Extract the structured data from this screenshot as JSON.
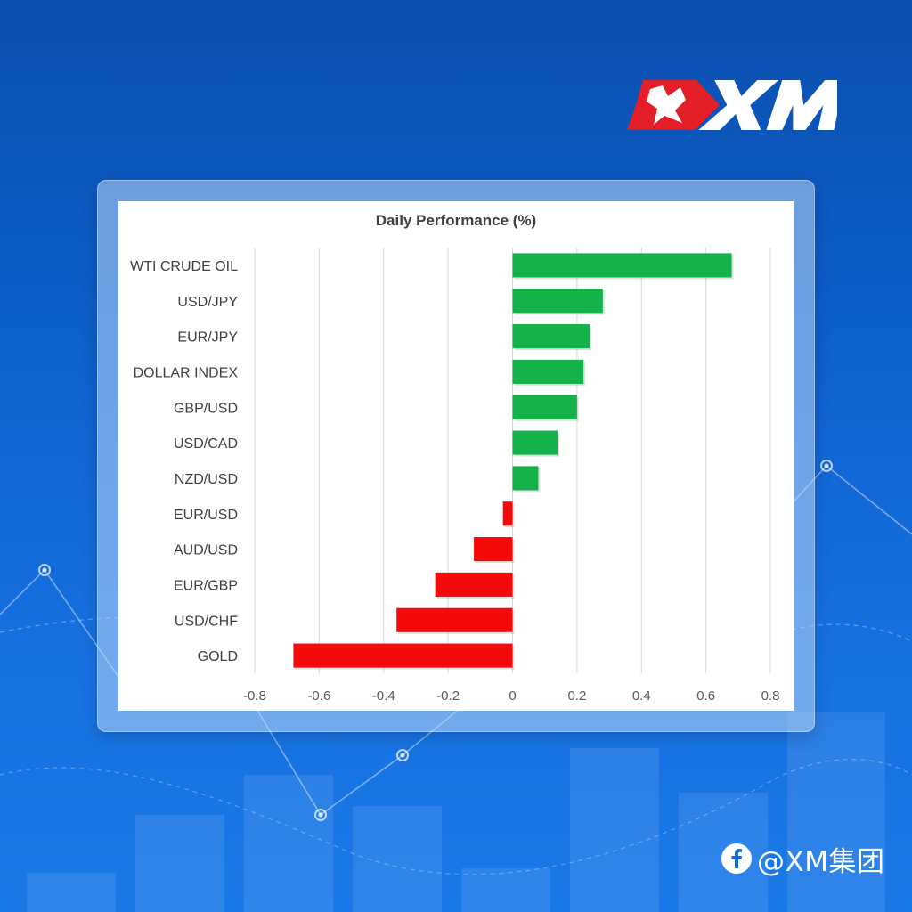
{
  "brand": {
    "name": "XM",
    "colors": {
      "accent_red": "#e41e26",
      "white": "#ffffff"
    }
  },
  "social": {
    "icon": "facebook-icon",
    "handle": "@XM集团"
  },
  "chart_data": {
    "type": "bar",
    "orientation": "horizontal",
    "title": "Daily Performance (%)",
    "xlabel": "",
    "ylabel": "",
    "categories": [
      "WTI CRUDE OIL",
      "USD/JPY",
      "EUR/JPY",
      "DOLLAR INDEX",
      "GBP/USD",
      "USD/CAD",
      "NZD/USD",
      "EUR/USD",
      "AUD/USD",
      "EUR/GBP",
      "USD/CHF",
      "GOLD"
    ],
    "values": [
      0.68,
      0.28,
      0.24,
      0.22,
      0.2,
      0.14,
      0.08,
      -0.03,
      -0.12,
      -0.24,
      -0.36,
      -0.68
    ],
    "xlim": [
      -0.8,
      0.8
    ],
    "x_ticks": [
      -0.8,
      -0.6,
      -0.4,
      -0.2,
      0,
      0.2,
      0.4,
      0.6,
      0.8
    ],
    "x_tick_labels": [
      "-0.8",
      "-0.6",
      "-0.4",
      "-0.2",
      "0",
      "0.2",
      "0.4",
      "0.6",
      "0.8"
    ],
    "grid": true,
    "colors": {
      "positive": "#13b24a",
      "negative": "#f50a0a",
      "grid": "#d9d9d9",
      "label": "#404040"
    }
  }
}
